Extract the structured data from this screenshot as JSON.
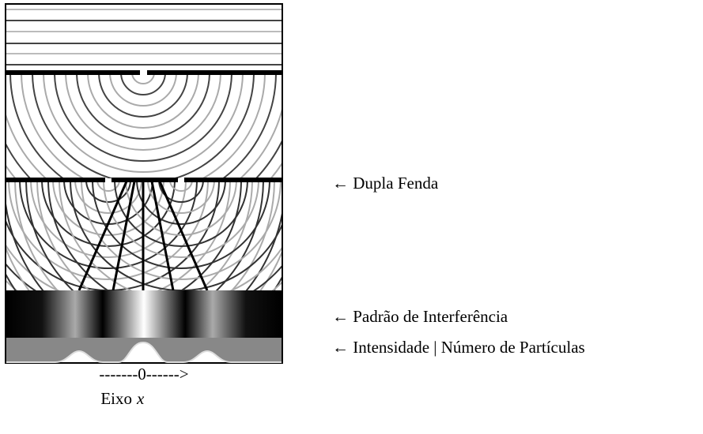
{
  "labels": {
    "double_slit": "← Dupla Fenda",
    "interference": "← Padrão de Interferência",
    "intensity": "← Intensidade | Número de Partículas"
  },
  "axis": {
    "arrow": "-------0------>",
    "name": "Eixo",
    "variable": "x"
  }
}
